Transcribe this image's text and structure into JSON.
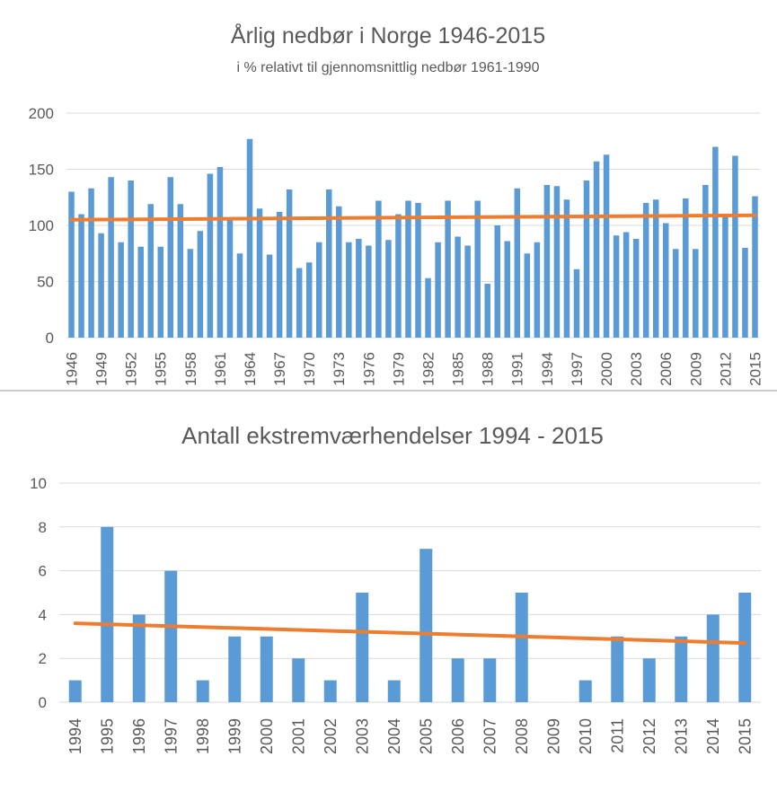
{
  "colors": {
    "bar": "#5b9bd5",
    "trend": "#ed7d31",
    "grid": "#d9d9d9",
    "text": "#595959"
  },
  "chart_data": [
    {
      "type": "bar",
      "title": "Årlig nedbør  i Norge 1946-2015",
      "subtitle": "i % relativt til gjennomsnittlig nedbør 1961-1990",
      "xlabel": "",
      "ylabel": "",
      "ylim": [
        0,
        200
      ],
      "yticks": [
        0,
        50,
        100,
        150,
        200
      ],
      "x": [
        1946,
        1947,
        1948,
        1949,
        1950,
        1951,
        1952,
        1953,
        1954,
        1955,
        1956,
        1957,
        1958,
        1959,
        1960,
        1961,
        1962,
        1963,
        1964,
        1965,
        1966,
        1967,
        1968,
        1969,
        1970,
        1971,
        1972,
        1973,
        1974,
        1975,
        1976,
        1977,
        1978,
        1979,
        1980,
        1981,
        1982,
        1983,
        1984,
        1985,
        1986,
        1987,
        1988,
        1989,
        1990,
        1991,
        1992,
        1993,
        1994,
        1995,
        1996,
        1997,
        1998,
        1999,
        2000,
        2001,
        2002,
        2003,
        2004,
        2005,
        2006,
        2007,
        2008,
        2009,
        2010,
        2011,
        2012,
        2013,
        2014,
        2015
      ],
      "xtick_labels": [
        "1946",
        "1949",
        "1952",
        "1955",
        "1958",
        "1961",
        "1964",
        "1967",
        "1970",
        "1973",
        "1976",
        "1979",
        "1982",
        "1985",
        "1988",
        "1991",
        "1994",
        "1997",
        "2000",
        "2003",
        "2006",
        "2009",
        "2012",
        "2015"
      ],
      "values": [
        130,
        110,
        133,
        93,
        143,
        85,
        140,
        81,
        119,
        81,
        143,
        119,
        79,
        95,
        146,
        152,
        105,
        75,
        177,
        115,
        74,
        112,
        132,
        62,
        67,
        85,
        132,
        117,
        85,
        88,
        82,
        122,
        87,
        110,
        122,
        120,
        53,
        85,
        122,
        90,
        82,
        122,
        48,
        100,
        86,
        133,
        75,
        85,
        136,
        135,
        123,
        61,
        140,
        157,
        163,
        91,
        94,
        88,
        120,
        123,
        102,
        79,
        124,
        79,
        136,
        170,
        108,
        162,
        80,
        126
      ],
      "trend": {
        "start": 105,
        "end": 109
      },
      "grid": true,
      "legend": "none"
    },
    {
      "type": "bar",
      "title": "Antall ekstremværhendelser 1994 - 2015",
      "xlabel": "",
      "ylabel": "",
      "ylim": [
        0,
        10
      ],
      "yticks": [
        0,
        2,
        4,
        6,
        8,
        10
      ],
      "categories": [
        "1994",
        "1995",
        "1996",
        "1997",
        "1998",
        "1999",
        "2000",
        "2001",
        "2002",
        "2003",
        "2004",
        "2005",
        "2006",
        "2007",
        "2008",
        "2009",
        "2010",
        "2011",
        "2012",
        "2013",
        "2014",
        "2015"
      ],
      "values": [
        1,
        8,
        4,
        6,
        1,
        3,
        3,
        2,
        1,
        5,
        1,
        7,
        2,
        2,
        5,
        0,
        1,
        3,
        2,
        3,
        4,
        5
      ],
      "trend": {
        "start": 3.6,
        "end": 2.7
      },
      "grid": true,
      "legend": "none"
    }
  ]
}
